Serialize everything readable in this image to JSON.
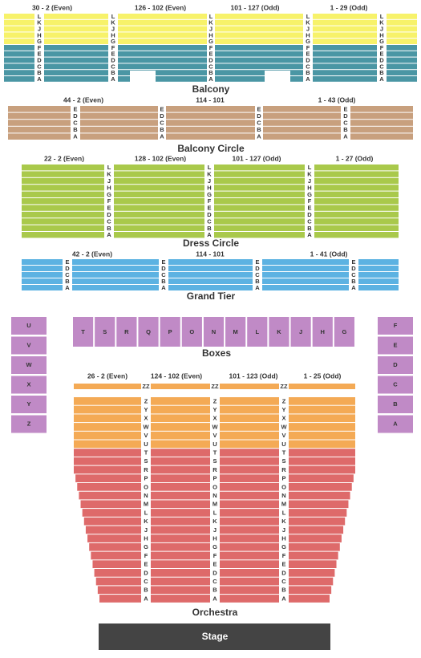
{
  "sections": [
    {
      "name": "Balcony",
      "headers": [
        "30 - 2 (Even)",
        "126 - 102 (Even)",
        "101 - 127 (Odd)",
        "1 - 29 (Odd)"
      ],
      "rows": [
        "L",
        "K",
        "J",
        "H",
        "G",
        "F",
        "E",
        "D",
        "C",
        "B",
        "A"
      ]
    },
    {
      "name": "Balcony Circle",
      "headers": [
        "44 - 2 (Even)",
        "114 - 101",
        "1 - 43 (Odd)"
      ],
      "rows": [
        "E",
        "D",
        "C",
        "B",
        "A"
      ]
    },
    {
      "name": "Dress Circle",
      "headers": [
        "22 - 2 (Even)",
        "128 - 102 (Even)",
        "101 - 127 (Odd)",
        "1 - 27 (Odd)"
      ],
      "rows": [
        "L",
        "K",
        "J",
        "H",
        "G",
        "F",
        "E",
        "D",
        "C",
        "B",
        "A"
      ]
    },
    {
      "name": "Grand Tier",
      "headers": [
        "42 - 2 (Even)",
        "114 - 101",
        "1 - 41 (Odd)"
      ],
      "rows": [
        "E",
        "D",
        "C",
        "B",
        "A"
      ]
    }
  ],
  "boxes": {
    "name": "Boxes",
    "left": [
      "U",
      "V",
      "W",
      "X",
      "Y",
      "Z"
    ],
    "center": [
      "T",
      "S",
      "R",
      "Q",
      "P",
      "O",
      "N",
      "M",
      "L",
      "K",
      "J",
      "H",
      "G"
    ],
    "right": [
      "F",
      "E",
      "D",
      "C",
      "B",
      "A"
    ]
  },
  "orchestra": {
    "name": "Orchestra",
    "headers": [
      "26 - 2 (Even)",
      "124 - 102 (Even)",
      "101 - 123 (Odd)",
      "1 - 25 (Odd)"
    ],
    "front_row": "ZZ",
    "rows": [
      "Z",
      "Y",
      "X",
      "W",
      "V",
      "U",
      "T",
      "S",
      "R",
      "P",
      "O",
      "N",
      "M",
      "L",
      "K",
      "J",
      "H",
      "G",
      "F",
      "E",
      "D",
      "C",
      "B",
      "A"
    ]
  },
  "stage": "Stage"
}
